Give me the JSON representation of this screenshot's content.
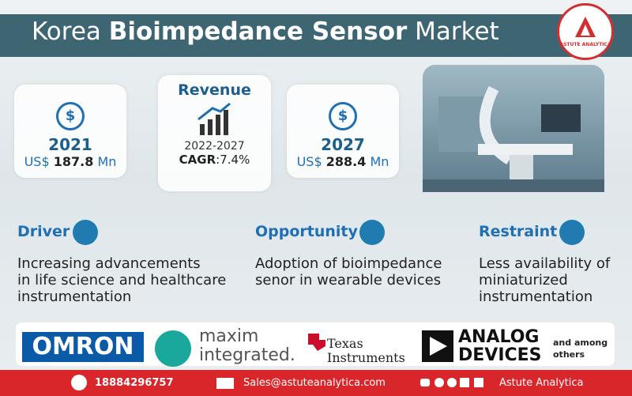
{
  "header": {
    "title_start": "Korea",
    "title_bold": "Bioimpedance Sensor",
    "title_end": "Market",
    "badge": "ASTUTE ANALYTICA"
  },
  "stats": {
    "start": {
      "year": "2021",
      "currency": "US$",
      "value": "187.8",
      "unit": "Mn"
    },
    "revenue": {
      "label": "Revenue",
      "period": "2022-2027",
      "cagr_label": "CAGR",
      "cagr_value": ":7.4%"
    },
    "end": {
      "year": "2027",
      "currency": "US$",
      "value": "288.4",
      "unit": "Mn"
    }
  },
  "factors": [
    {
      "title": "Driver",
      "lines": [
        "Increasing advancements",
        "in life science and healthcare",
        "instrumentation"
      ]
    },
    {
      "title": "Opportunity",
      "lines": [
        "Adoption of bioimpedance",
        "senor in wearable devices"
      ]
    },
    {
      "title": "Restraint",
      "lines": [
        "Less availability of",
        "miniaturized",
        "instrumentation"
      ]
    }
  ],
  "companies": {
    "omron": "OMRON",
    "maxim": [
      "maxim",
      "integrated."
    ],
    "ti": [
      "Texas",
      "Instruments"
    ],
    "adi": [
      "ANALOG",
      "DEVICES"
    ],
    "others": [
      "and among",
      "others"
    ]
  },
  "footer": {
    "phone": "18884296757",
    "email": "Sales@astuteanalytica.com",
    "brand": "Astute Analytica"
  }
}
